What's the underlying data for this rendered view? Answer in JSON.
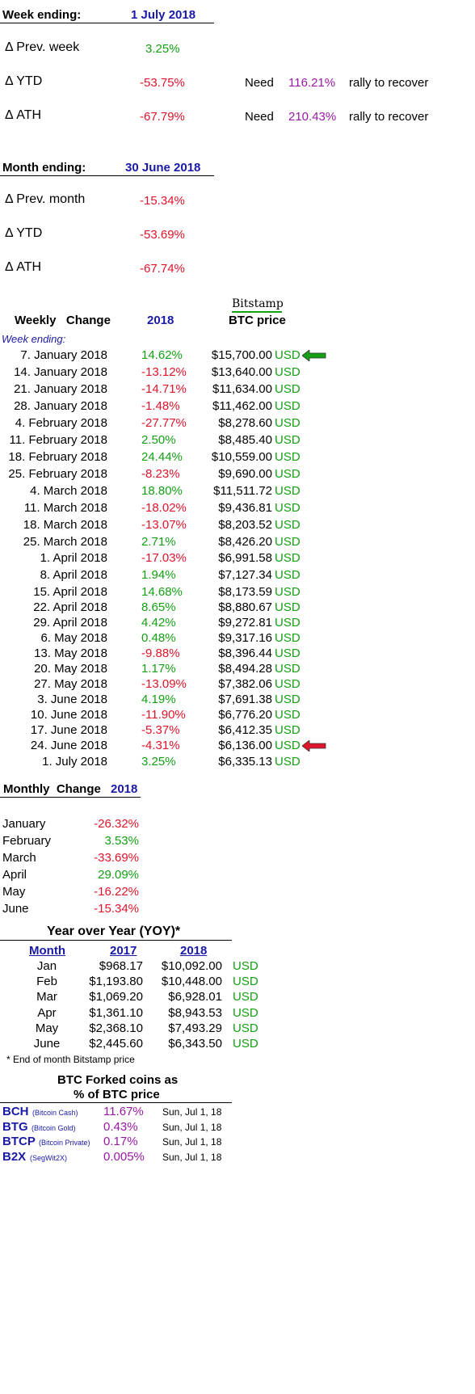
{
  "week_summary": {
    "label": "Week ending:",
    "date": "1 July 2018",
    "rows": [
      {
        "label": "Δ Prev. week",
        "value": "3.25%",
        "color": "green"
      },
      {
        "label": "Δ YTD",
        "value": "-53.75%",
        "color": "red",
        "need": "Need",
        "need_value": "116.21%",
        "suffix": "rally to recover"
      },
      {
        "label": "Δ ATH",
        "value": "-67.79%",
        "color": "red",
        "need": "Need",
        "need_value": "210.43%",
        "suffix": "rally to recover"
      }
    ]
  },
  "month_summary": {
    "label": "Month ending:",
    "date": "30 June 2018",
    "rows": [
      {
        "label": "Δ Prev. month",
        "value": "-15.34%",
        "color": "red"
      },
      {
        "label": "Δ YTD",
        "value": "-53.69%",
        "color": "red"
      },
      {
        "label": "Δ ATH",
        "value": "-67.74%",
        "color": "red"
      }
    ]
  },
  "weekly": {
    "exchange": "Bitstamp",
    "header_left": "Weekly   Change",
    "header_year": "2018",
    "header_price": "BTC price",
    "subheader": "Week ending:",
    "currency": "USD",
    "rows": [
      {
        "date": "7. January 2018",
        "change": "14.62%",
        "color": "green",
        "price": "$15,700.00",
        "arrow": "green"
      },
      {
        "date": "14. January 2018",
        "change": "-13.12%",
        "color": "red",
        "price": "$13,640.00"
      },
      {
        "date": "21. January 2018",
        "change": "-14.71%",
        "color": "red",
        "price": "$11,634.00"
      },
      {
        "date": "28. January 2018",
        "change": "-1.48%",
        "color": "red",
        "price": "$11,462.00"
      },
      {
        "date": "4. February 2018",
        "change": "-27.77%",
        "color": "red",
        "price": "$8,278.60"
      },
      {
        "date": "11. February 2018",
        "change": "2.50%",
        "color": "green",
        "price": "$8,485.40"
      },
      {
        "date": "18. February 2018",
        "change": "24.44%",
        "color": "green",
        "price": "$10,559.00"
      },
      {
        "date": "25. February 2018",
        "change": "-8.23%",
        "color": "red",
        "price": "$9,690.00"
      },
      {
        "date": "4. March 2018",
        "change": "18.80%",
        "color": "green",
        "price": "$11,511.72"
      },
      {
        "date": "11. March 2018",
        "change": "-18.02%",
        "color": "red",
        "price": "$9,436.81"
      },
      {
        "date": "18. March 2018",
        "change": "-13.07%",
        "color": "red",
        "price": "$8,203.52"
      },
      {
        "date": "25. March 2018",
        "change": "2.71%",
        "color": "green",
        "price": "$8,426.20"
      },
      {
        "date": "1. April 2018",
        "change": "-17.03%",
        "color": "red",
        "price": "$6,991.58"
      },
      {
        "date": "8. April 2018",
        "change": "1.94%",
        "color": "green",
        "price": "$7,127.34"
      },
      {
        "date": "15. April 2018",
        "change": "14.68%",
        "color": "green",
        "price": "$8,173.59"
      },
      {
        "date": "22. April 2018",
        "change": "8.65%",
        "color": "green",
        "price": "$8,880.67"
      },
      {
        "date": "29. April 2018",
        "change": "4.42%",
        "color": "green",
        "price": "$9,272.81"
      },
      {
        "date": "6. May 2018",
        "change": "0.48%",
        "color": "green",
        "price": "$9,317.16"
      },
      {
        "date": "13. May 2018",
        "change": "-9.88%",
        "color": "red",
        "price": "$8,396.44"
      },
      {
        "date": "20. May 2018",
        "change": "1.17%",
        "color": "green",
        "price": "$8,494.28"
      },
      {
        "date": "27. May 2018",
        "change": "-13.09%",
        "color": "red",
        "price": "$7,382.06"
      },
      {
        "date": "3. June 2018",
        "change": "4.19%",
        "color": "green",
        "price": "$7,691.38"
      },
      {
        "date": "10. June 2018",
        "change": "-11.90%",
        "color": "red",
        "price": "$6,776.20"
      },
      {
        "date": "17. June 2018",
        "change": "-5.37%",
        "color": "red",
        "price": "$6,412.35"
      },
      {
        "date": "24. June 2018",
        "change": "-4.31%",
        "color": "red",
        "price": "$6,136.00",
        "arrow": "red"
      },
      {
        "date": "1. July 2018",
        "change": "3.25%",
        "color": "green",
        "price": "$6,335.13"
      }
    ]
  },
  "monthly": {
    "header": "Monthly  Change",
    "year": "2018",
    "rows": [
      {
        "month": "January",
        "change": "-26.32%",
        "color": "red"
      },
      {
        "month": "February",
        "change": "3.53%",
        "color": "green"
      },
      {
        "month": "March",
        "change": "-33.69%",
        "color": "red"
      },
      {
        "month": "April",
        "change": "29.09%",
        "color": "green"
      },
      {
        "month": "May",
        "change": "-16.22%",
        "color": "red"
      },
      {
        "month": "June",
        "change": "-15.34%",
        "color": "red"
      }
    ]
  },
  "yoy": {
    "title": "Year over Year (YOY)*",
    "col_month": "Month",
    "col_2017": "2017",
    "col_2018": "2018",
    "currency": "USD",
    "rows": [
      {
        "month": "Jan",
        "y2017": "$968.17",
        "y2018": "$10,092.00"
      },
      {
        "month": "Feb",
        "y2017": "$1,193.80",
        "y2018": "$10,448.00"
      },
      {
        "month": "Mar",
        "y2017": "$1,069.20",
        "y2018": "$6,928.01"
      },
      {
        "month": "Apr",
        "y2017": "$1,361.10",
        "y2018": "$8,943.53"
      },
      {
        "month": "May",
        "y2017": "$2,368.10",
        "y2018": "$7,493.29"
      },
      {
        "month": "June",
        "y2017": "$2,445.60",
        "y2018": "$6,343.50"
      }
    ],
    "footnote": "* End of month Bitstamp price"
  },
  "forks": {
    "title_line1": "BTC Forked coins as",
    "title_line2": "% of BTC price",
    "rows": [
      {
        "ticker": "BCH",
        "name": "(Bitcoin Cash)",
        "pct": "11.67%",
        "date": "Sun, Jul 1, 18"
      },
      {
        "ticker": "BTG",
        "name": "(Bitcoin Gold)",
        "pct": "0.43%",
        "date": "Sun, Jul 1, 18"
      },
      {
        "ticker": "BTCP",
        "name": "(Bitcoin Private)",
        "pct": "0.17%",
        "date": "Sun, Jul 1, 18"
      },
      {
        "ticker": "B2X",
        "name": "(SegWit2X)",
        "pct": "0.005%",
        "date": "Sun, Jul 1, 18"
      }
    ]
  },
  "colors": {
    "green": "#14a014",
    "red": "#e0142a",
    "purple": "#9a1aa6",
    "blue": "#1a1aa6"
  }
}
